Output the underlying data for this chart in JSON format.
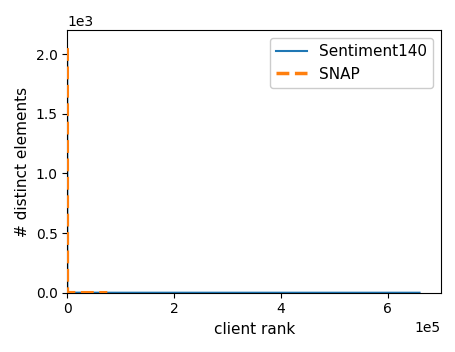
{
  "title": "",
  "xlabel": "client rank",
  "ylabel": "# distinct elements",
  "sentiment140_n_clients": 659775,
  "sentiment140_max_y": 2000,
  "snap_n_clients": 75000,
  "snap_max_y": 2050,
  "sentiment140_color": "#1f77b4",
  "snap_color": "#ff7f0e",
  "sentiment140_label": "Sentiment140",
  "snap_label": "SNAP",
  "xlim": [
    0,
    700000
  ],
  "ylim": [
    0,
    2200
  ],
  "legend_loc": "upper right",
  "sentiment140_alpha": 0.85,
  "snap_alpha": 1.0,
  "figwidth": 4.56,
  "figheight": 3.52,
  "dpi": 100
}
